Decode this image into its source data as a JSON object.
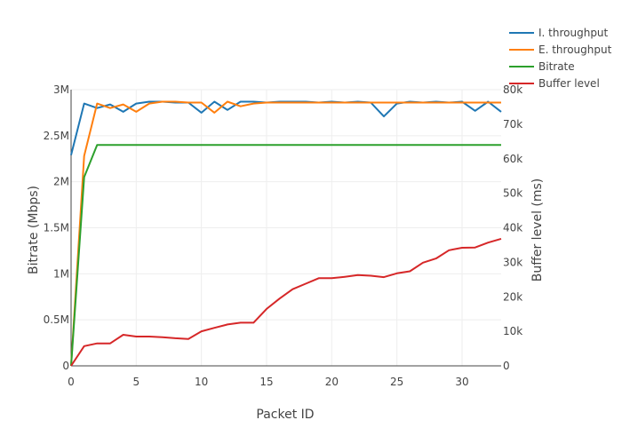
{
  "chart_data": {
    "type": "line",
    "xlabel": "Packet ID",
    "ylabel": "Bitrate (Mbps)",
    "y2label": "Buffer level (ms)",
    "xlim": [
      0,
      33
    ],
    "ylim": [
      0,
      3000000
    ],
    "y2lim": [
      0,
      80000
    ],
    "x_ticks": [
      0,
      5,
      10,
      15,
      20,
      25,
      30
    ],
    "x_tick_labels": [
      "0",
      "5",
      "10",
      "15",
      "20",
      "25",
      "30"
    ],
    "y_ticks": [
      0,
      500000,
      1000000,
      1500000,
      2000000,
      2500000,
      3000000
    ],
    "y_tick_labels": [
      "0",
      "0.5M",
      "1M",
      "1.5M",
      "2M",
      "2.5M",
      "3M"
    ],
    "y2_ticks": [
      0,
      10000,
      20000,
      30000,
      40000,
      50000,
      60000,
      70000,
      80000
    ],
    "y2_tick_labels": [
      "0",
      "10k",
      "20k",
      "30k",
      "40k",
      "50k",
      "60k",
      "70k",
      "80k"
    ],
    "grid": true,
    "legend_position": "top-right",
    "x": [
      0,
      1,
      2,
      3,
      4,
      5,
      6,
      7,
      8,
      9,
      10,
      11,
      12,
      13,
      14,
      15,
      16,
      17,
      18,
      19,
      20,
      21,
      22,
      23,
      24,
      25,
      26,
      27,
      28,
      29,
      30,
      31,
      32,
      33
    ],
    "series": [
      {
        "name": "I. throughput",
        "color": "#1f77b4",
        "axis": "y",
        "values": [
          2290000,
          2850000,
          2800000,
          2840000,
          2760000,
          2850000,
          2870000,
          2870000,
          2860000,
          2860000,
          2750000,
          2870000,
          2780000,
          2870000,
          2870000,
          2860000,
          2870000,
          2870000,
          2870000,
          2860000,
          2870000,
          2860000,
          2870000,
          2860000,
          2710000,
          2850000,
          2870000,
          2860000,
          2870000,
          2860000,
          2870000,
          2770000,
          2870000,
          2760000
        ]
      },
      {
        "name": "E. throughput",
        "color": "#ff7f0e",
        "axis": "y",
        "values": [
          0,
          2280000,
          2850000,
          2800000,
          2840000,
          2760000,
          2850000,
          2870000,
          2870000,
          2860000,
          2860000,
          2750000,
          2870000,
          2820000,
          2850000,
          2860000,
          2860000,
          2860000,
          2860000,
          2860000,
          2860000,
          2860000,
          2860000,
          2860000,
          2860000,
          2860000,
          2860000,
          2860000,
          2860000,
          2860000,
          2860000,
          2860000,
          2860000,
          2860000
        ]
      },
      {
        "name": "Bitrate",
        "color": "#2ca02c",
        "axis": "y",
        "values": [
          0,
          2050000,
          2400000,
          2400000,
          2400000,
          2400000,
          2400000,
          2400000,
          2400000,
          2400000,
          2400000,
          2400000,
          2400000,
          2400000,
          2400000,
          2400000,
          2400000,
          2400000,
          2400000,
          2400000,
          2400000,
          2400000,
          2400000,
          2400000,
          2400000,
          2400000,
          2400000,
          2400000,
          2400000,
          2400000,
          2400000,
          2400000,
          2400000,
          2400000
        ]
      },
      {
        "name": "Buffer level",
        "color": "#d62728",
        "axis": "y2",
        "values": [
          0,
          5700,
          6500,
          6500,
          9000,
          8500,
          8500,
          8300,
          8000,
          7800,
          10000,
          11000,
          12000,
          12500,
          12500,
          16500,
          19500,
          22200,
          23800,
          25400,
          25400,
          25800,
          26300,
          26100,
          25700,
          26800,
          27400,
          29900,
          31100,
          33500,
          34200,
          34300,
          35700,
          36800
        ]
      }
    ]
  }
}
